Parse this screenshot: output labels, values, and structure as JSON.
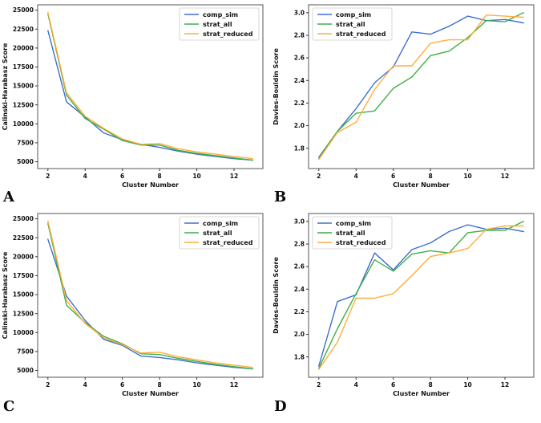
{
  "page": {
    "background": "#ffffff"
  },
  "colors": {
    "comp_sim": "#3f6fd1",
    "strat_all": "#3fb045",
    "strat_reduced": "#ffae3b",
    "axis": "#555555",
    "tick_text": "#111111",
    "legend_border": "#cccccc"
  },
  "panels": [
    {
      "letter": "A"
    },
    {
      "letter": "B"
    },
    {
      "letter": "C"
    },
    {
      "letter": "D"
    }
  ],
  "chart_data": [
    {
      "type": "line",
      "panel": "A",
      "title": "",
      "xlabel": "Cluster Number",
      "ylabel": "Calinski-Harabasz Score",
      "x": [
        2,
        3,
        4,
        5,
        6,
        7,
        8,
        9,
        10,
        11,
        12,
        13
      ],
      "xticks": [
        2,
        4,
        6,
        8,
        10,
        12
      ],
      "yticks": [
        5000,
        7500,
        10000,
        12500,
        15000,
        17500,
        20000,
        22500,
        25000
      ],
      "ytickfmt": "int",
      "xlim": [
        1.45,
        13.55
      ],
      "ylim": [
        4100,
        25700
      ],
      "legend_pos": "right",
      "grid": false,
      "series": [
        {
          "name": "comp_sim",
          "color": "#3f6fd1",
          "values": [
            22300,
            12900,
            10900,
            8800,
            7900,
            7300,
            6900,
            6400,
            6000,
            5700,
            5400,
            5200
          ]
        },
        {
          "name": "strat_all",
          "color": "#3fb045",
          "values": [
            24500,
            13800,
            10700,
            9300,
            7800,
            7200,
            7200,
            6500,
            6100,
            5800,
            5500,
            5200
          ]
        },
        {
          "name": "strat_reduced",
          "color": "#ffae3b",
          "values": [
            24700,
            14100,
            11000,
            9400,
            8000,
            7300,
            7400,
            6700,
            6300,
            6000,
            5700,
            5400
          ]
        }
      ]
    },
    {
      "type": "line",
      "panel": "B",
      "title": "",
      "xlabel": "Cluster Number",
      "ylabel": "Davies-Bouldin Score",
      "x": [
        2,
        3,
        4,
        5,
        6,
        7,
        8,
        9,
        10,
        11,
        12,
        13
      ],
      "xticks": [
        2,
        4,
        6,
        8,
        10,
        12
      ],
      "yticks": [
        1.8,
        2.0,
        2.2,
        2.4,
        2.6,
        2.8,
        3.0
      ],
      "ytickfmt": "1f",
      "xlim": [
        1.45,
        13.55
      ],
      "ylim": [
        1.62,
        3.07
      ],
      "legend_pos": "left",
      "grid": false,
      "series": [
        {
          "name": "comp_sim",
          "color": "#3f6fd1",
          "values": [
            1.72,
            1.95,
            2.15,
            2.38,
            2.52,
            2.83,
            2.81,
            2.88,
            2.97,
            2.93,
            2.94,
            2.91
          ]
        },
        {
          "name": "strat_all",
          "color": "#3fb045",
          "values": [
            1.71,
            1.95,
            2.11,
            2.13,
            2.33,
            2.43,
            2.62,
            2.66,
            2.78,
            2.93,
            2.92,
            3.0
          ]
        },
        {
          "name": "strat_reduced",
          "color": "#ffae3b",
          "values": [
            1.7,
            1.94,
            2.03,
            2.32,
            2.53,
            2.53,
            2.73,
            2.76,
            2.76,
            2.98,
            2.97,
            2.96
          ]
        }
      ]
    },
    {
      "type": "line",
      "panel": "C",
      "title": "",
      "xlabel": "Cluster Number",
      "ylabel": "Calinski-Harabasz Score",
      "x": [
        2,
        3,
        4,
        5,
        6,
        7,
        8,
        9,
        10,
        11,
        12,
        13
      ],
      "xticks": [
        2,
        4,
        6,
        8,
        10,
        12
      ],
      "yticks": [
        5000,
        7500,
        10000,
        12500,
        15000,
        17500,
        20000,
        22500,
        25000
      ],
      "ytickfmt": "int",
      "xlim": [
        1.45,
        13.55
      ],
      "ylim": [
        4100,
        25700
      ],
      "legend_pos": "right",
      "grid": false,
      "series": [
        {
          "name": "comp_sim",
          "color": "#3f6fd1",
          "values": [
            22300,
            14800,
            11600,
            9100,
            8300,
            6900,
            6700,
            6400,
            6000,
            5700,
            5400,
            5200
          ]
        },
        {
          "name": "strat_all",
          "color": "#3fb045",
          "values": [
            24400,
            13600,
            11300,
            9500,
            8500,
            7200,
            7100,
            6600,
            6200,
            5800,
            5500,
            5200
          ]
        },
        {
          "name": "strat_reduced",
          "color": "#ffae3b",
          "values": [
            24700,
            14200,
            11200,
            9300,
            8400,
            7300,
            7400,
            6800,
            6400,
            6000,
            5700,
            5400
          ]
        }
      ]
    },
    {
      "type": "line",
      "panel": "D",
      "title": "",
      "xlabel": "Cluster Number",
      "ylabel": "Davies-Bouldin Score",
      "x": [
        2,
        3,
        4,
        5,
        6,
        7,
        8,
        9,
        10,
        11,
        12,
        13
      ],
      "xticks": [
        2,
        4,
        6,
        8,
        10,
        12
      ],
      "yticks": [
        1.8,
        2.0,
        2.2,
        2.4,
        2.6,
        2.8,
        3.0
      ],
      "ytickfmt": "1f",
      "xlim": [
        1.45,
        13.55
      ],
      "ylim": [
        1.62,
        3.07
      ],
      "legend_pos": "left",
      "grid": false,
      "series": [
        {
          "name": "comp_sim",
          "color": "#3f6fd1",
          "values": [
            1.72,
            2.29,
            2.35,
            2.72,
            2.57,
            2.75,
            2.81,
            2.91,
            2.97,
            2.93,
            2.94,
            2.91
          ]
        },
        {
          "name": "strat_all",
          "color": "#3fb045",
          "values": [
            1.7,
            2.05,
            2.36,
            2.66,
            2.56,
            2.71,
            2.74,
            2.72,
            2.9,
            2.92,
            2.92,
            3.0
          ]
        },
        {
          "name": "strat_reduced",
          "color": "#ffae3b",
          "values": [
            1.69,
            1.93,
            2.32,
            2.32,
            2.36,
            2.52,
            2.69,
            2.72,
            2.76,
            2.93,
            2.96,
            2.96
          ]
        }
      ]
    }
  ]
}
